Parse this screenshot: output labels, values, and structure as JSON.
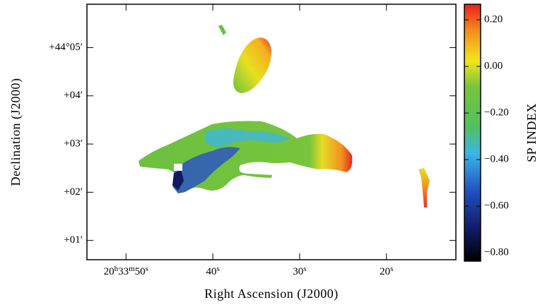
{
  "chart_data": {
    "type": "image",
    "xlabel": "Right Ascension (J2000)",
    "ylabel": "Declination (J2000)",
    "colorbar_label": "SP INDEX",
    "xlim": [
      54.5,
      12.0
    ],
    "xticks": [
      {
        "value": 50,
        "label": "20h33m50s"
      },
      {
        "value": 40,
        "label": "40s"
      },
      {
        "value": 30,
        "label": "30s"
      },
      {
        "value": 20,
        "label": "20s"
      }
    ],
    "ylim": [
      0.6,
      5.9
    ],
    "yticks": [
      {
        "value": 1,
        "label": "+01′"
      },
      {
        "value": 2,
        "label": "+02′"
      },
      {
        "value": 3,
        "label": "+03′"
      },
      {
        "value": 4,
        "label": "+04′"
      },
      {
        "value": 5,
        "label": "+44°05′"
      }
    ],
    "clim": [
      -0.836,
      0.267
    ],
    "cticks": [
      {
        "value": 0.2,
        "label": "0.20"
      },
      {
        "value": 0,
        "label": "0.00"
      },
      {
        "value": -0.2,
        "label": "−0.20"
      },
      {
        "value": -0.4,
        "label": "−0.40"
      },
      {
        "value": -0.6,
        "label": "−0.60"
      },
      {
        "value": -0.8,
        "label": "−0.80"
      }
    ]
  }
}
